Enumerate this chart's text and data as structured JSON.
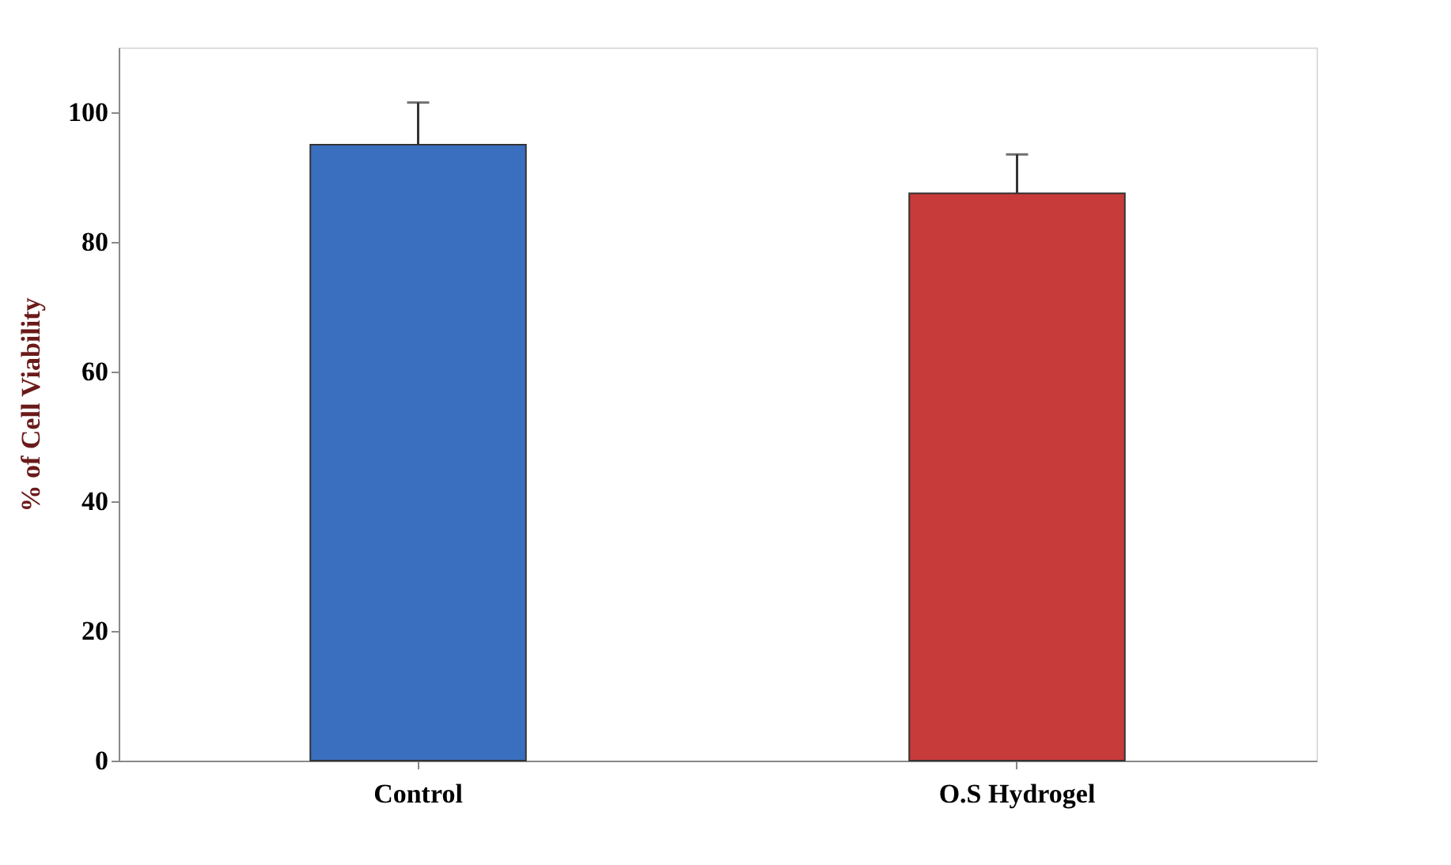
{
  "chart_data": {
    "type": "bar",
    "ylabel": "% of Cell Viability",
    "categories": [
      "Control",
      "O.S Hydrogel"
    ],
    "values": [
      95,
      87.5
    ],
    "errors": [
      6.5,
      6
    ],
    "colors": [
      "#3a6fc0",
      "#c83b3b"
    ],
    "ylim": [
      0,
      110
    ],
    "yticks": [
      0,
      20,
      40,
      60,
      80,
      100
    ],
    "grid": false
  }
}
